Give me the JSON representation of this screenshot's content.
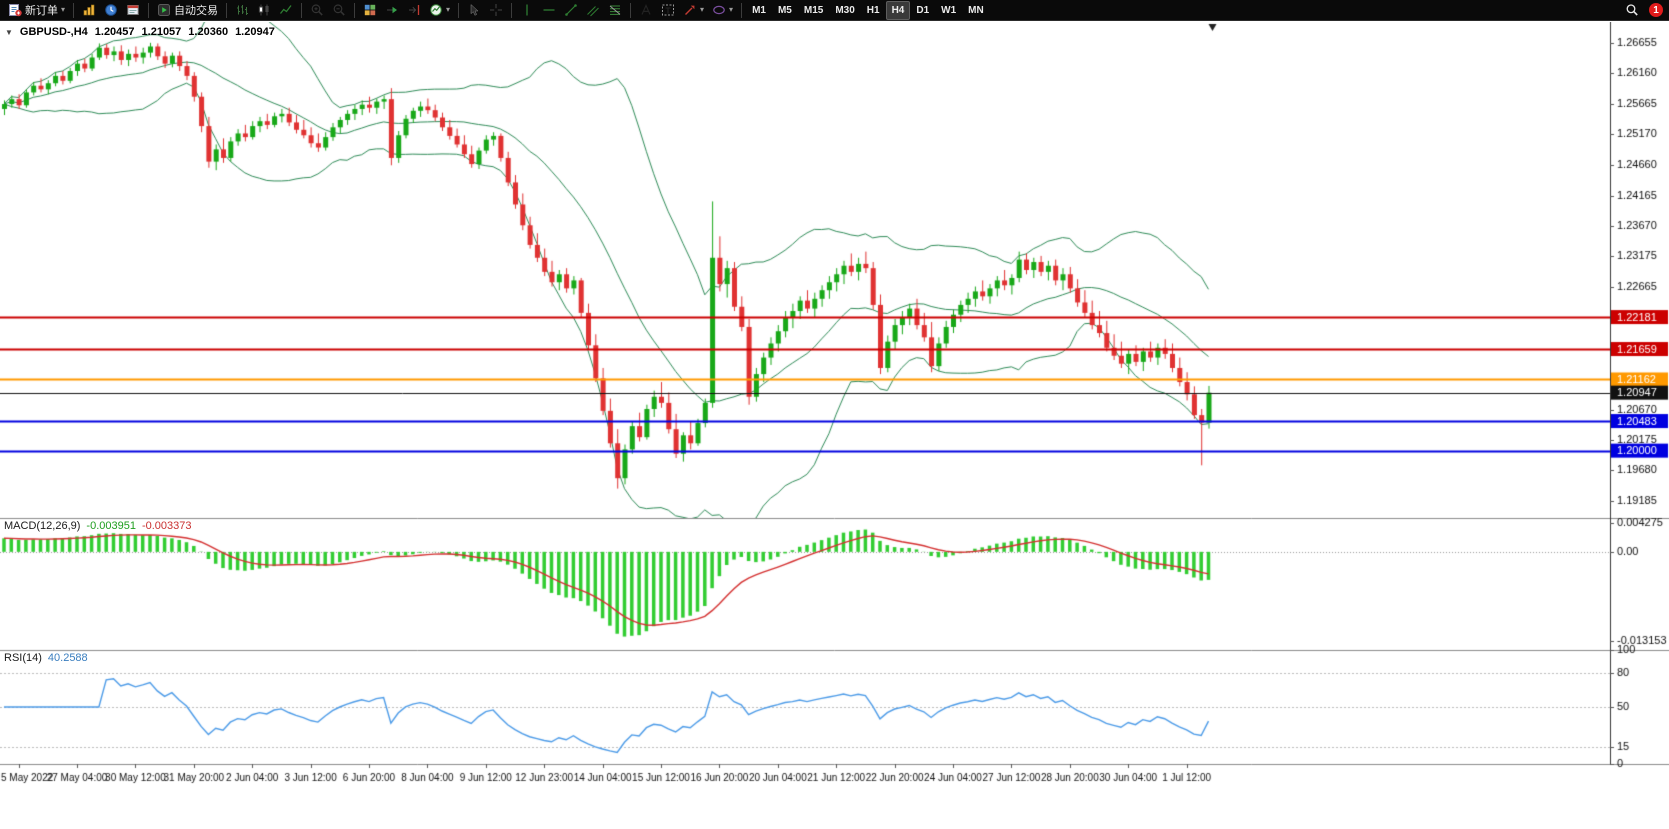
{
  "toolbar": {
    "groups": [
      {
        "items": [
          {
            "name": "new-order-button",
            "icon": "new-order",
            "label": "新订单",
            "arrow": true
          }
        ]
      },
      {
        "items": [
          {
            "name": "charts-menu-button",
            "icon": "chart-gold"
          },
          {
            "name": "market-watch-button",
            "icon": "clock-blue"
          },
          {
            "name": "terminal-button",
            "icon": "terminal-red"
          }
        ]
      },
      {
        "items": [
          {
            "name": "autotrading-button",
            "icon": "autotrade",
            "label": "自动交易"
          }
        ]
      },
      {
        "items": [
          {
            "name": "bar-chart-button",
            "icon": "bars"
          },
          {
            "name": "candlestick-chart-button",
            "icon": "candles"
          },
          {
            "name": "line-chart-button",
            "icon": "line-chart"
          }
        ]
      },
      {
        "items": [
          {
            "name": "zoom-in-button",
            "icon": "zoom-in"
          },
          {
            "name": "zoom-out-button",
            "icon": "zoom-out"
          }
        ]
      },
      {
        "items": [
          {
            "name": "tile-windows-button",
            "icon": "tile-grid"
          },
          {
            "name": "auto-scroll-button",
            "icon": "auto-scroll"
          },
          {
            "name": "chart-shift-button",
            "icon": "chart-shift"
          },
          {
            "name": "indicators-button",
            "icon": "indicator",
            "arrow": true
          }
        ]
      },
      {
        "items": [
          {
            "name": "cursor-button",
            "icon": "cursor"
          },
          {
            "name": "crosshair-button",
            "icon": "crosshair"
          }
        ]
      },
      {
        "items": [
          {
            "name": "vertical-line-button",
            "icon": "vline"
          },
          {
            "name": "horizontal-line-button",
            "icon": "hline"
          },
          {
            "name": "trendline-button",
            "icon": "trendline"
          },
          {
            "name": "channel-button",
            "icon": "channel"
          },
          {
            "name": "fibonacci-button",
            "icon": "fibonacci"
          }
        ]
      },
      {
        "items": [
          {
            "name": "text-button",
            "icon": "text-a"
          },
          {
            "name": "label-button",
            "icon": "text-t"
          },
          {
            "name": "arrows-button",
            "icon": "arrow-obj",
            "arrow": true
          },
          {
            "name": "shapes-button",
            "icon": "ellipse",
            "arrow": true
          }
        ]
      }
    ],
    "timeframes": [
      "M1",
      "M5",
      "M15",
      "M30",
      "H1",
      "H4",
      "D1",
      "W1",
      "MN"
    ],
    "active_timeframe": "H4",
    "notification_count": "1"
  },
  "chart_data": {
    "type": "candlestick",
    "symbol": "GBPUSD-",
    "timeframe": "H4",
    "header": {
      "symbol": "GBPUSD-,H4",
      "open": "1.20457",
      "high": "1.21057",
      "low": "1.20360",
      "close": "1.20947"
    },
    "price_axis": {
      "range": [
        1.189,
        1.27
      ],
      "ticks": [
        "1.26655",
        "1.26160",
        "1.25665",
        "1.25170",
        "1.24660",
        "1.24165",
        "1.23670",
        "1.23175",
        "1.22665",
        "1.20670",
        "1.20175",
        "1.19680",
        "1.19185"
      ]
    },
    "levels": [
      {
        "price": 1.22181,
        "label": "1.22181",
        "color": "#CC0000",
        "width": 2
      },
      {
        "price": 1.21659,
        "label": "1.21659",
        "color": "#CC0000",
        "width": 2
      },
      {
        "price": 1.21162,
        "label": "1.21162",
        "color": "#FF9900",
        "width": 2
      },
      {
        "price": 1.20947,
        "label": "1.20947",
        "color": "#111111",
        "width": 1
      },
      {
        "price": 1.20483,
        "label": "1.20483",
        "color": "#0000E0",
        "width": 2
      },
      {
        "price": 1.2,
        "label": "1.20000",
        "color": "#0000E0",
        "width": 2
      }
    ],
    "time_axis": {
      "first_candle_index": 2,
      "candle_step": 8,
      "labels": [
        "5 May 2022",
        "27 May 04:00",
        "30 May 12:00",
        "31 May 20:00",
        "2 Jun 04:00",
        "3 Jun 12:00",
        "6 Jun 20:00",
        "8 Jun 04:00",
        "9 Jun 12:00",
        "12 Jun 23:00",
        "14 Jun 04:00",
        "15 Jun 12:00",
        "16 Jun 20:00",
        "20 Jun 04:00",
        "21 Jun 12:00",
        "22 Jun 20:00",
        "24 Jun 04:00",
        "27 Jun 12:00",
        "28 Jun 20:00",
        "30 Jun 04:00",
        "1 Jul 12:00"
      ]
    },
    "colors": {
      "up": "#18A818",
      "down": "#E03232",
      "background": "#FFFFFF"
    },
    "indicators": {
      "bollinger": {
        "period": 20,
        "deviations": 2,
        "color": "#2E8B57"
      },
      "macd": {
        "label": "MACD(12,26,9)",
        "fast": 12,
        "slow": 26,
        "signal": 9,
        "value_main": "-0.003951",
        "value_signal": "-0.003373",
        "axis_labels": [
          "0.004275",
          "0.00",
          "-0.013153"
        ],
        "range": [
          -0.0145,
          0.005
        ],
        "histogram_color": "#32CD32",
        "signal_color": "#D43030"
      },
      "rsi": {
        "label": "RSI(14)",
        "period": 14,
        "value": "40.2588",
        "levels": [
          80,
          50,
          15
        ],
        "axis_labels": [
          "100",
          "80",
          "50",
          "15",
          "0"
        ],
        "range": [
          0,
          100
        ],
        "color": "#4C9BE8"
      }
    },
    "candles": [
      [
        1.2558,
        1.2572,
        1.2548,
        1.2566
      ],
      [
        1.2566,
        1.258,
        1.256,
        1.2574
      ],
      [
        1.2574,
        1.2582,
        1.2558,
        1.2564
      ],
      [
        1.2564,
        1.259,
        1.256,
        1.2585
      ],
      [
        1.2585,
        1.2602,
        1.258,
        1.2596
      ],
      [
        1.2596,
        1.2608,
        1.2585,
        1.259
      ],
      [
        1.259,
        1.2605,
        1.2582,
        1.26
      ],
      [
        1.26,
        1.2618,
        1.2595,
        1.2612
      ],
      [
        1.2612,
        1.262,
        1.2598,
        1.2604
      ],
      [
        1.2604,
        1.2625,
        1.26,
        1.262
      ],
      [
        1.262,
        1.2638,
        1.2612,
        1.2632
      ],
      [
        1.2632,
        1.264,
        1.2618,
        1.2624
      ],
      [
        1.2624,
        1.2648,
        1.262,
        1.2642
      ],
      [
        1.2642,
        1.2665,
        1.2638,
        1.2658
      ],
      [
        1.2658,
        1.2664,
        1.264,
        1.2646
      ],
      [
        1.2646,
        1.266,
        1.2636,
        1.2652
      ],
      [
        1.2652,
        1.2662,
        1.263,
        1.2638
      ],
      [
        1.2638,
        1.2655,
        1.2628,
        1.2648
      ],
      [
        1.2648,
        1.266,
        1.2635,
        1.2642
      ],
      [
        1.2642,
        1.2658,
        1.2632,
        1.265
      ],
      [
        1.265,
        1.2666,
        1.2642,
        1.266
      ],
      [
        1.266,
        1.2665,
        1.2638,
        1.2644
      ],
      [
        1.2644,
        1.2652,
        1.2625,
        1.2632
      ],
      [
        1.2632,
        1.265,
        1.2626,
        1.2645
      ],
      [
        1.2645,
        1.2652,
        1.262,
        1.2628
      ],
      [
        1.2628,
        1.2636,
        1.2605,
        1.2612
      ],
      [
        1.2612,
        1.2618,
        1.257,
        1.2578
      ],
      [
        1.2578,
        1.2585,
        1.252,
        1.253
      ],
      [
        1.253,
        1.2545,
        1.2462,
        1.2472
      ],
      [
        1.2472,
        1.25,
        1.2458,
        1.2492
      ],
      [
        1.2492,
        1.251,
        1.247,
        1.2478
      ],
      [
        1.2478,
        1.2512,
        1.2472,
        1.2505
      ],
      [
        1.2505,
        1.2525,
        1.2498,
        1.2518
      ],
      [
        1.2518,
        1.2532,
        1.2505,
        1.2512
      ],
      [
        1.2512,
        1.2538,
        1.2508,
        1.253
      ],
      [
        1.253,
        1.2545,
        1.252,
        1.2538
      ],
      [
        1.2538,
        1.255,
        1.2525,
        1.2532
      ],
      [
        1.2532,
        1.2552,
        1.2528,
        1.2546
      ],
      [
        1.2546,
        1.2558,
        1.2536,
        1.255
      ],
      [
        1.255,
        1.256,
        1.253,
        1.2536
      ],
      [
        1.2536,
        1.2548,
        1.2518,
        1.2524
      ],
      [
        1.2524,
        1.254,
        1.251,
        1.2515
      ],
      [
        1.2515,
        1.2528,
        1.2495,
        1.2502
      ],
      [
        1.2502,
        1.2518,
        1.2488,
        1.2495
      ],
      [
        1.2495,
        1.252,
        1.249,
        1.2512
      ],
      [
        1.2512,
        1.2535,
        1.2506,
        1.2528
      ],
      [
        1.2528,
        1.2545,
        1.2518,
        1.254
      ],
      [
        1.254,
        1.2556,
        1.2532,
        1.255
      ],
      [
        1.255,
        1.2565,
        1.254,
        1.2558
      ],
      [
        1.2558,
        1.2572,
        1.2548,
        1.2565
      ],
      [
        1.2565,
        1.2578,
        1.2552,
        1.256
      ],
      [
        1.256,
        1.2575,
        1.255,
        1.257
      ],
      [
        1.257,
        1.258,
        1.2558,
        1.2574
      ],
      [
        1.2574,
        1.2592,
        1.2466,
        1.2478
      ],
      [
        1.2478,
        1.2522,
        1.247,
        1.2515
      ],
      [
        1.2515,
        1.2548,
        1.251,
        1.2542
      ],
      [
        1.2542,
        1.256,
        1.2535,
        1.2555
      ],
      [
        1.2555,
        1.257,
        1.2545,
        1.2562
      ],
      [
        1.2562,
        1.2575,
        1.255,
        1.2556
      ],
      [
        1.2556,
        1.2565,
        1.2538,
        1.2544
      ],
      [
        1.2544,
        1.2552,
        1.2522,
        1.2528
      ],
      [
        1.2528,
        1.254,
        1.2508,
        1.2514
      ],
      [
        1.2514,
        1.2526,
        1.2495,
        1.25
      ],
      [
        1.25,
        1.2515,
        1.2478,
        1.2484
      ],
      [
        1.2484,
        1.2498,
        1.2462,
        1.2468
      ],
      [
        1.2468,
        1.2495,
        1.246,
        1.249
      ],
      [
        1.249,
        1.2515,
        1.2485,
        1.2508
      ],
      [
        1.2508,
        1.252,
        1.2498,
        1.2514
      ],
      [
        1.2514,
        1.2518,
        1.2472,
        1.2478
      ],
      [
        1.2478,
        1.2488,
        1.2432,
        1.2438
      ],
      [
        1.2438,
        1.245,
        1.2395,
        1.2402
      ],
      [
        1.2402,
        1.242,
        1.236,
        1.2368
      ],
      [
        1.2368,
        1.2382,
        1.233,
        1.2336
      ],
      [
        1.2336,
        1.2355,
        1.2308,
        1.2315
      ],
      [
        1.2315,
        1.233,
        1.2285,
        1.2292
      ],
      [
        1.2292,
        1.231,
        1.2268,
        1.2275
      ],
      [
        1.2275,
        1.2295,
        1.2262,
        1.2288
      ],
      [
        1.2288,
        1.2298,
        1.2258,
        1.2265
      ],
      [
        1.2265,
        1.2285,
        1.2255,
        1.2278
      ],
      [
        1.2278,
        1.2282,
        1.2218,
        1.2225
      ],
      [
        1.2225,
        1.224,
        1.2165,
        1.2172
      ],
      [
        1.2172,
        1.219,
        1.2112,
        1.2118
      ],
      [
        1.2118,
        1.2135,
        1.2058,
        1.2065
      ],
      [
        1.2065,
        1.2085,
        1.2005,
        1.2012
      ],
      [
        1.2012,
        1.2035,
        1.1938,
        1.1955
      ],
      [
        1.1955,
        1.201,
        1.1945,
        1.2002
      ],
      [
        1.2002,
        1.2048,
        1.1995,
        1.204
      ],
      [
        1.204,
        1.2062,
        1.2015,
        1.2022
      ],
      [
        1.2022,
        1.2075,
        1.2018,
        1.2068
      ],
      [
        1.2068,
        1.2098,
        1.2055,
        1.2088
      ],
      [
        1.2088,
        1.2112,
        1.207,
        1.2078
      ],
      [
        1.2078,
        1.2095,
        1.2028,
        1.2035
      ],
      [
        1.2035,
        1.206,
        1.1988,
        1.1995
      ],
      [
        1.1995,
        1.203,
        1.1982,
        1.2025
      ],
      [
        1.2025,
        1.2048,
        1.2002,
        1.2012
      ],
      [
        1.2012,
        1.2052,
        1.2008,
        1.2045
      ],
      [
        1.2045,
        1.2085,
        1.2038,
        1.2078
      ],
      [
        1.2078,
        1.2407,
        1.207,
        1.2315
      ],
      [
        1.2315,
        1.235,
        1.226,
        1.2272
      ],
      [
        1.2272,
        1.231,
        1.225,
        1.2298
      ],
      [
        1.2298,
        1.2308,
        1.2228,
        1.2235
      ],
      [
        1.2235,
        1.2252,
        1.2195,
        1.2202
      ],
      [
        1.2202,
        1.2215,
        1.2075,
        1.2088
      ],
      [
        1.2088,
        1.2135,
        1.208,
        1.2125
      ],
      [
        1.2125,
        1.216,
        1.2112,
        1.2152
      ],
      [
        1.2152,
        1.2185,
        1.214,
        1.2175
      ],
      [
        1.2175,
        1.2205,
        1.2162,
        1.2195
      ],
      [
        1.2195,
        1.2228,
        1.2185,
        1.2218
      ],
      [
        1.2218,
        1.224,
        1.22,
        1.2228
      ],
      [
        1.2228,
        1.2252,
        1.2215,
        1.2245
      ],
      [
        1.2245,
        1.2262,
        1.2225,
        1.2232
      ],
      [
        1.2232,
        1.2258,
        1.2218,
        1.2248
      ],
      [
        1.2248,
        1.227,
        1.2235,
        1.2262
      ],
      [
        1.2262,
        1.2285,
        1.2248,
        1.2275
      ],
      [
        1.2275,
        1.2298,
        1.226,
        1.2288
      ],
      [
        1.2288,
        1.231,
        1.2272,
        1.2302
      ],
      [
        1.2302,
        1.2322,
        1.2285,
        1.2292
      ],
      [
        1.2292,
        1.2315,
        1.2278,
        1.2305
      ],
      [
        1.2305,
        1.2325,
        1.229,
        1.2298
      ],
      [
        1.2298,
        1.2308,
        1.223,
        1.2238
      ],
      [
        1.2238,
        1.2255,
        1.2125,
        1.2135
      ],
      [
        1.2135,
        1.2188,
        1.2128,
        1.2178
      ],
      [
        1.2178,
        1.2215,
        1.2165,
        1.2205
      ],
      [
        1.2205,
        1.2228,
        1.219,
        1.2218
      ],
      [
        1.2218,
        1.224,
        1.2205,
        1.2232
      ],
      [
        1.2232,
        1.2248,
        1.2198,
        1.2205
      ],
      [
        1.2205,
        1.2225,
        1.2178,
        1.2185
      ],
      [
        1.2185,
        1.221,
        1.2128,
        1.2138
      ],
      [
        1.2138,
        1.2185,
        1.213,
        1.2175
      ],
      [
        1.2175,
        1.2212,
        1.2168,
        1.2202
      ],
      [
        1.2202,
        1.223,
        1.2192,
        1.2222
      ],
      [
        1.2222,
        1.2245,
        1.221,
        1.2238
      ],
      [
        1.2238,
        1.2258,
        1.2225,
        1.2248
      ],
      [
        1.2248,
        1.2268,
        1.2235,
        1.226
      ],
      [
        1.226,
        1.2278,
        1.2245,
        1.2252
      ],
      [
        1.2252,
        1.2272,
        1.224,
        1.2265
      ],
      [
        1.2265,
        1.2285,
        1.2252,
        1.2278
      ],
      [
        1.2278,
        1.2295,
        1.2262,
        1.227
      ],
      [
        1.227,
        1.2288,
        1.2255,
        1.2282
      ],
      [
        1.2282,
        1.2325,
        1.2275,
        1.2312
      ],
      [
        1.2312,
        1.2322,
        1.2288,
        1.2295
      ],
      [
        1.2295,
        1.2315,
        1.2282,
        1.2308
      ],
      [
        1.2308,
        1.2318,
        1.2285,
        1.2292
      ],
      [
        1.2292,
        1.231,
        1.2278,
        1.2302
      ],
      [
        1.2302,
        1.2312,
        1.227,
        1.2278
      ],
      [
        1.2278,
        1.2298,
        1.2262,
        1.2288
      ],
      [
        1.2288,
        1.23,
        1.2258,
        1.2265
      ],
      [
        1.2265,
        1.228,
        1.2235,
        1.2242
      ],
      [
        1.2242,
        1.2262,
        1.2218,
        1.2225
      ],
      [
        1.2225,
        1.2245,
        1.2198,
        1.2205
      ],
      [
        1.2205,
        1.2228,
        1.2185,
        1.2192
      ],
      [
        1.2192,
        1.2212,
        1.2162,
        1.2168
      ],
      [
        1.2168,
        1.219,
        1.2148,
        1.2155
      ],
      [
        1.2155,
        1.2178,
        1.2135,
        1.2142
      ],
      [
        1.2142,
        1.2165,
        1.2125,
        1.2158
      ],
      [
        1.2158,
        1.2172,
        1.2138,
        1.2145
      ],
      [
        1.2145,
        1.2168,
        1.213,
        1.2162
      ],
      [
        1.2162,
        1.2178,
        1.2145,
        1.2152
      ],
      [
        1.2152,
        1.2175,
        1.214,
        1.2168
      ],
      [
        1.2168,
        1.2182,
        1.215,
        1.2158
      ],
      [
        1.2158,
        1.2175,
        1.2128,
        1.2135
      ],
      [
        1.2135,
        1.2152,
        1.2105,
        1.2112
      ],
      [
        1.2112,
        1.2128,
        1.2082,
        1.2092
      ],
      [
        1.2092,
        1.2105,
        1.2052,
        1.2058
      ],
      [
        1.2058,
        1.2068,
        1.1976,
        1.2046
      ],
      [
        1.20457,
        1.21057,
        1.2036,
        1.20947
      ]
    ]
  }
}
